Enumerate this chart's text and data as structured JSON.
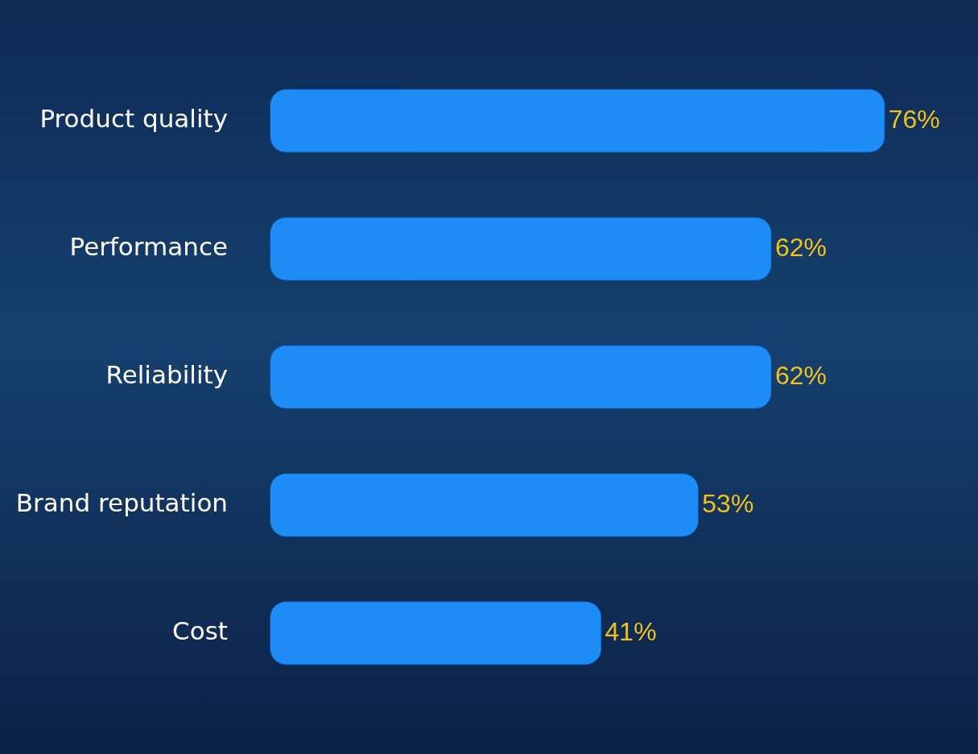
{
  "chart_data": {
    "type": "bar",
    "orientation": "horizontal",
    "categories": [
      "Product quality",
      "Performance",
      "Reliability",
      "Brand reputation",
      "Cost"
    ],
    "values": [
      76,
      62,
      62,
      53,
      41
    ],
    "value_labels": [
      "76%",
      "62%",
      "62%",
      "53%",
      "41%"
    ],
    "color": "#1e8cf5",
    "tick_labels": "y",
    "legend": false
  }
}
